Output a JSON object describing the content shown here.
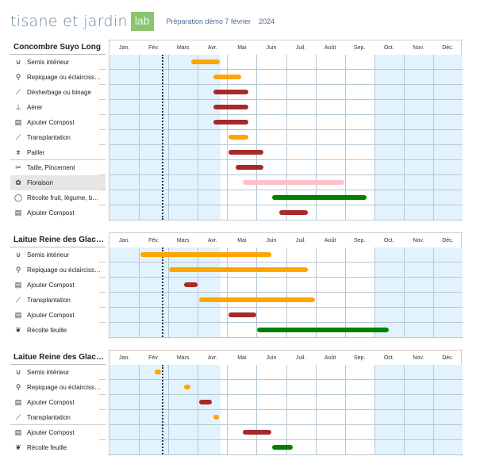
{
  "header": {
    "logo": "tisane et jardin",
    "logo_badge": "lab",
    "subtitle": "Préparation démo 7 février",
    "year": "2024"
  },
  "months": [
    "Jan.",
    "Fév.",
    "Mars",
    "Avr.",
    "Mai",
    "Juin",
    "Juil.",
    "Août",
    "Sep.",
    "Oct.",
    "Nov.",
    "Déc."
  ],
  "today_month": 1.81,
  "colors": {
    "orange": "#ffa500",
    "red": "#a52a2a",
    "pink": "#ffc0cb",
    "green": "#008000",
    "shade": "#e3f3fd"
  },
  "shade_ranges": [
    [
      0,
      3.78
    ],
    [
      9,
      12
    ]
  ],
  "sections": [
    {
      "title": "Concombre Suyo Long",
      "rows": [
        {
          "label": "Semis intérieur",
          "icon": "seed-tray-icon",
          "color": "orange",
          "start": 2.78,
          "end": 3.75
        },
        {
          "label": "Repiquage ou éclairciss…",
          "icon": "transplant-pot-icon",
          "color": "orange",
          "start": 3.53,
          "end": 4.48
        },
        {
          "label": "Désherbage ou binage",
          "icon": "hoe-icon",
          "color": "red",
          "start": 3.53,
          "end": 4.72
        },
        {
          "label": "Aérer",
          "icon": "fork-icon",
          "color": "red",
          "start": 3.53,
          "end": 4.72
        },
        {
          "label": "Ajouter Compost",
          "icon": "compost-icon",
          "color": "red",
          "start": 3.53,
          "end": 4.72
        },
        {
          "label": "Transplantation",
          "icon": "shovel-icon",
          "color": "orange",
          "start": 4.05,
          "end": 4.72
        },
        {
          "label": "Pailler",
          "icon": "mulch-icon",
          "color": "red",
          "start": 4.05,
          "end": 5.23
        },
        {
          "label": "Taille, Pincement",
          "icon": "pruner-icon",
          "color": "red",
          "start": 4.29,
          "end": 5.23
        },
        {
          "label": "Floraison",
          "icon": "flower-icon",
          "color": "pink",
          "start": 4.53,
          "end": 7.98,
          "highlight": true
        },
        {
          "label": "Récolte fruit, légume, b…",
          "icon": "fruit-icon",
          "color": "green",
          "start": 5.53,
          "end": 8.74
        },
        {
          "label": "Ajouter Compost",
          "icon": "compost-icon",
          "color": "red",
          "start": 5.77,
          "end": 6.74
        }
      ]
    },
    {
      "title": "Laitue Reine des Glace…",
      "rows": [
        {
          "label": "Semis intérieur",
          "icon": "seed-tray-icon",
          "color": "orange",
          "start": 1.05,
          "end": 5.5
        },
        {
          "label": "Repiquage ou éclairciss…",
          "icon": "transplant-pot-icon",
          "color": "orange",
          "start": 2.02,
          "end": 6.74
        },
        {
          "label": "Ajouter Compost",
          "icon": "compost-icon",
          "color": "red",
          "start": 2.54,
          "end": 2.99
        },
        {
          "label": "Transplantation",
          "icon": "shovel-icon",
          "color": "orange",
          "start": 3.05,
          "end": 6.98
        },
        {
          "label": "Ajouter Compost",
          "icon": "compost-icon",
          "color": "red",
          "start": 4.05,
          "end": 4.99
        },
        {
          "label": "Récolte feuille",
          "icon": "leaf-icon",
          "color": "green",
          "start": 5.02,
          "end": 9.49
        }
      ]
    },
    {
      "title": "Laitue Reine des Glace…",
      "rows": [
        {
          "label": "Semis intérieur",
          "icon": "seed-tray-icon",
          "color": "orange",
          "start": 1.54,
          "end": 1.75
        },
        {
          "label": "Repiquage ou éclairciss…",
          "icon": "transplant-pot-icon",
          "color": "orange",
          "start": 2.54,
          "end": 2.75
        },
        {
          "label": "Ajouter Compost",
          "icon": "compost-icon",
          "color": "red",
          "start": 3.05,
          "end": 3.48
        },
        {
          "label": "Transplantation",
          "icon": "shovel-icon",
          "color": "orange",
          "start": 3.53,
          "end": 3.72
        },
        {
          "label": "Ajouter Compost",
          "icon": "compost-icon",
          "color": "red",
          "start": 4.53,
          "end": 5.5
        },
        {
          "label": "Récolte feuille",
          "icon": "leaf-icon",
          "color": "green",
          "start": 5.53,
          "end": 6.23
        }
      ]
    }
  ]
}
